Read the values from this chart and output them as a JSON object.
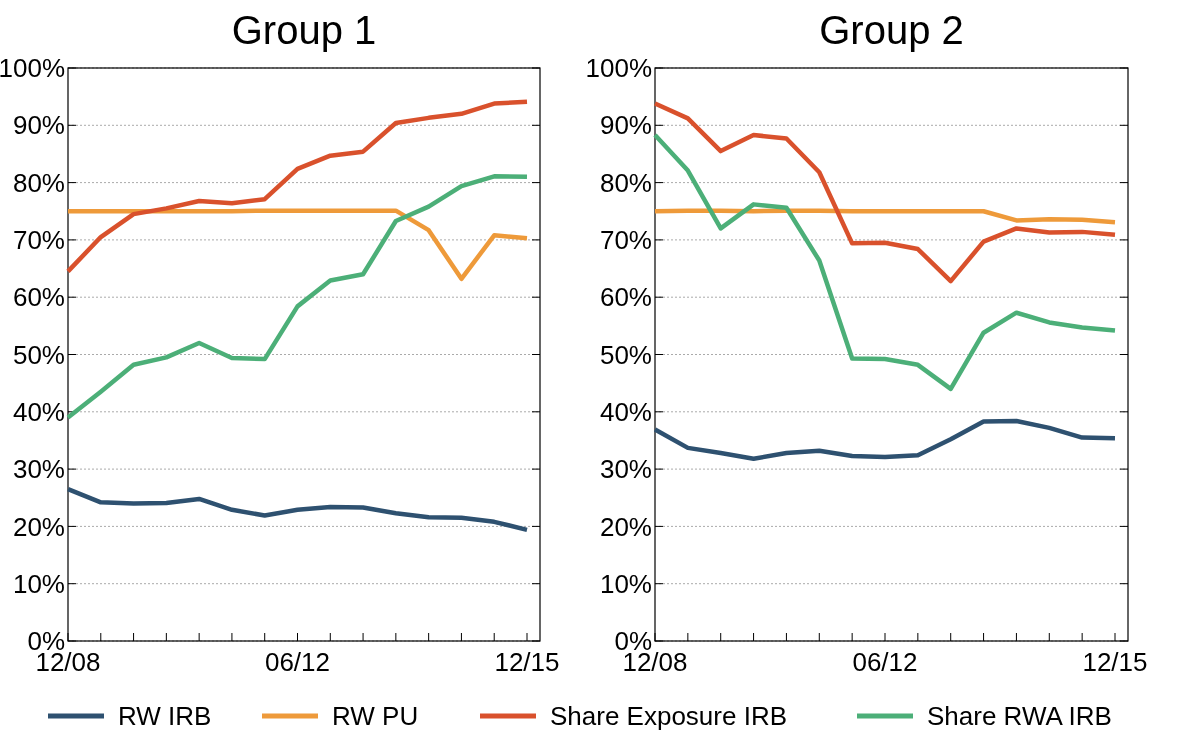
{
  "chart_data": [
    {
      "type": "line",
      "title": "Group 1",
      "categories": [
        "12/08",
        null,
        null,
        null,
        null,
        null,
        null,
        "06/12",
        null,
        null,
        null,
        null,
        null,
        null,
        "12/15"
      ],
      "ylim": [
        0,
        100
      ],
      "yticks": [
        {
          "value": 0,
          "label": "0%"
        },
        {
          "value": 10,
          "label": "10%"
        },
        {
          "value": 20,
          "label": "20%"
        },
        {
          "value": 30,
          "label": "30%"
        },
        {
          "value": 40,
          "label": "40%"
        },
        {
          "value": 50,
          "label": "50%"
        },
        {
          "value": 60,
          "label": "60%"
        },
        {
          "value": 70,
          "label": "70%"
        },
        {
          "value": 80,
          "label": "80%"
        },
        {
          "value": 90,
          "label": "90%"
        },
        {
          "value": 100,
          "label": "100%"
        }
      ],
      "grid": "y",
      "legend": "bottom",
      "marker": "none",
      "line_style": "solid",
      "series": [
        {
          "name": "RW IRB",
          "color": "#2e5170",
          "values": [
            26.5,
            24.2,
            24.0,
            24.1,
            24.8,
            22.9,
            21.9,
            22.9,
            23.4,
            23.3,
            22.3,
            21.6,
            21.5,
            20.8,
            19.4
          ]
        },
        {
          "name": "RW PU",
          "color": "#ee9a3a",
          "values": [
            75,
            75,
            75,
            75,
            75,
            75,
            75.1,
            75.1,
            75.1,
            75.1,
            75.1,
            71.7,
            63.2,
            70.8,
            70.3
          ]
        },
        {
          "name": "Share Exposure IRB",
          "color": "#d9512c",
          "values": [
            64.5,
            70.5,
            74.5,
            75.5,
            76.8,
            76.4,
            77.1,
            82.4,
            84.7,
            85.4,
            90.4,
            91.3,
            92.0,
            93.8,
            94.1
          ]
        },
        {
          "name": "Share RWA IRB",
          "color": "#4caf78",
          "values": [
            39,
            43.5,
            48.2,
            49.5,
            52,
            49.4,
            49.2,
            58.4,
            62.9,
            64,
            73.3,
            75.8,
            79.4,
            81.1,
            81.0
          ]
        }
      ]
    },
    {
      "type": "line",
      "title": "Group 2",
      "categories": [
        "12/08",
        null,
        null,
        null,
        null,
        null,
        null,
        "06/12",
        null,
        null,
        null,
        null,
        null,
        null,
        "12/15"
      ],
      "ylim": [
        0,
        100
      ],
      "yticks": [
        {
          "value": 0,
          "label": "0%"
        },
        {
          "value": 10,
          "label": "10%"
        },
        {
          "value": 20,
          "label": "20%"
        },
        {
          "value": 30,
          "label": "30%"
        },
        {
          "value": 40,
          "label": "40%"
        },
        {
          "value": 50,
          "label": "50%"
        },
        {
          "value": 60,
          "label": "60%"
        },
        {
          "value": 70,
          "label": "70%"
        },
        {
          "value": 80,
          "label": "80%"
        },
        {
          "value": 90,
          "label": "90%"
        },
        {
          "value": 100,
          "label": "100%"
        }
      ],
      "grid": "y",
      "marker": "none",
      "line_style": "solid",
      "series": [
        {
          "color": "#2e5170",
          "values": [
            36.9,
            33.7,
            32.8,
            31.8,
            32.8,
            33.2,
            32.3,
            32.1,
            32.4,
            35.2,
            38.3,
            38.4,
            37.2,
            35.5,
            35.4
          ]
        },
        {
          "color": "#ee9a3a",
          "values": [
            75,
            75.1,
            75.1,
            75,
            75.1,
            75.1,
            75,
            75,
            75,
            75,
            75,
            73.4,
            73.6,
            73.5,
            73.1
          ]
        },
        {
          "color": "#d9512c",
          "values": [
            93.8,
            91.2,
            85.5,
            88.3,
            87.7,
            81.8,
            69.4,
            69.5,
            68.4,
            62.8,
            69.7,
            72.0,
            71.3,
            71.4,
            70.9
          ]
        },
        {
          "color": "#4caf78",
          "values": [
            88.3,
            82.1,
            72.0,
            76.2,
            75.6,
            66.4,
            49.3,
            49.2,
            48.2,
            44.0,
            53.8,
            57.3,
            55.6,
            54.7,
            54.2
          ]
        }
      ]
    }
  ]
}
